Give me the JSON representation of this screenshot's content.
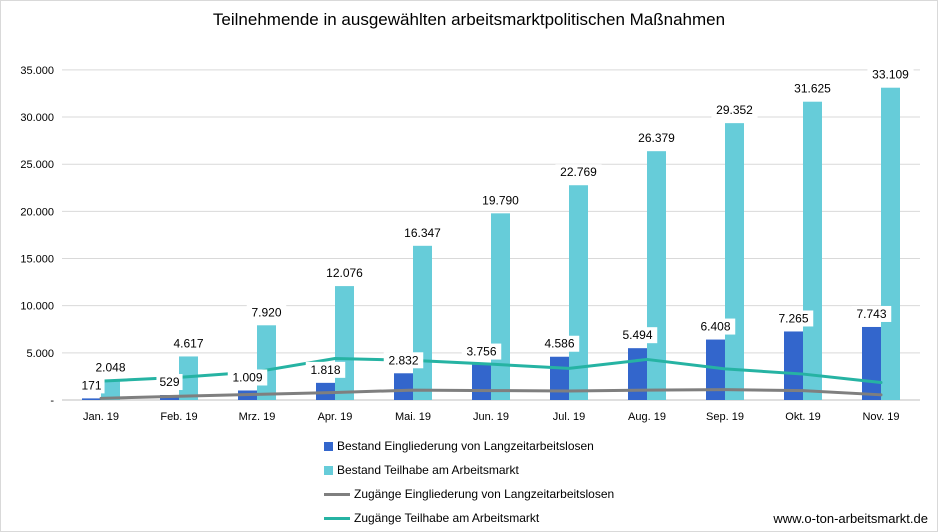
{
  "chart_data": {
    "type": "bar",
    "title": "Teilnehmende in ausgewählten arbeitsmarktpolitischen Maßnahmen",
    "categories": [
      "Jan. 19",
      "Feb. 19",
      "Mrz. 19",
      "Apr. 19",
      "Mai. 19",
      "Jun. 19",
      "Jul. 19",
      "Aug. 19",
      "Sep. 19",
      "Okt. 19",
      "Nov. 19"
    ],
    "ylim": [
      0,
      37000
    ],
    "yticks": [
      {
        "value": 0,
        "label": "-"
      },
      {
        "value": 5000,
        "label": "5.000"
      },
      {
        "value": 10000,
        "label": "10.000"
      },
      {
        "value": 15000,
        "label": "15.000"
      },
      {
        "value": 20000,
        "label": "20.000"
      },
      {
        "value": 25000,
        "label": "25.000"
      },
      {
        "value": 30000,
        "label": "30.000"
      },
      {
        "value": 35000,
        "label": "35.000"
      }
    ],
    "grid": true,
    "legend_position": "bottom",
    "series": [
      {
        "name": "Bestand Eingliederung von Langzeitarbeitslosen",
        "type": "bar",
        "color": "#3366cc",
        "values": [
          171,
          529,
          1009,
          1818,
          2832,
          3756,
          4586,
          5494,
          6408,
          7265,
          7743
        ],
        "labels": [
          "171",
          "529",
          "1.009",
          "1.818",
          "2.832",
          "3.756",
          "4.586",
          "5.494",
          "6.408",
          "7.265",
          "7.743"
        ]
      },
      {
        "name": "Bestand Teilhabe am Arbeitsmarkt",
        "type": "bar",
        "color": "#66ccd9",
        "values": [
          2048,
          4617,
          7920,
          12076,
          16347,
          19790,
          22769,
          26379,
          29352,
          31625,
          33109
        ],
        "labels": [
          "2.048",
          "4.617",
          "7.920",
          "12.076",
          "16.347",
          "19.790",
          "22.769",
          "26.379",
          "29.352",
          "31.625",
          "33.109"
        ]
      },
      {
        "name": "Zugänge Eingliederung von Langzeitarbeitslosen",
        "type": "line",
        "color": "#7f7f7f",
        "values": [
          170,
          400,
          600,
          800,
          1050,
          1000,
          950,
          1050,
          1100,
          1000,
          550
        ]
      },
      {
        "name": "Zugänge Teilhabe am Arbeitsmarkt",
        "type": "line",
        "color": "#26b3a3",
        "values": [
          2000,
          2400,
          3000,
          4400,
          4200,
          3800,
          3350,
          4300,
          3300,
          2750,
          1850
        ]
      }
    ]
  },
  "source": {
    "url": "www.o-ton-arbeitsmarkt.de"
  }
}
